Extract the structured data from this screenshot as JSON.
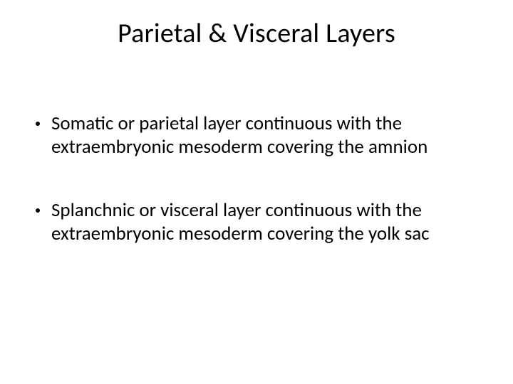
{
  "slide": {
    "title": "Parietal & Visceral Layers",
    "bullets": [
      {
        "text": "Somatic or parietal layer continuous with the extraembryonic mesoderm covering the amnion"
      },
      {
        "text": "Splanchnic or visceral layer continuous with the extraembryonic mesoderm covering the yolk sac"
      }
    ],
    "style": {
      "background_color": "#ffffff",
      "text_color": "#000000",
      "title_fontsize": 38,
      "body_fontsize": 27,
      "bullet_marker_color": "#000000",
      "font_family": "Calibri"
    }
  }
}
